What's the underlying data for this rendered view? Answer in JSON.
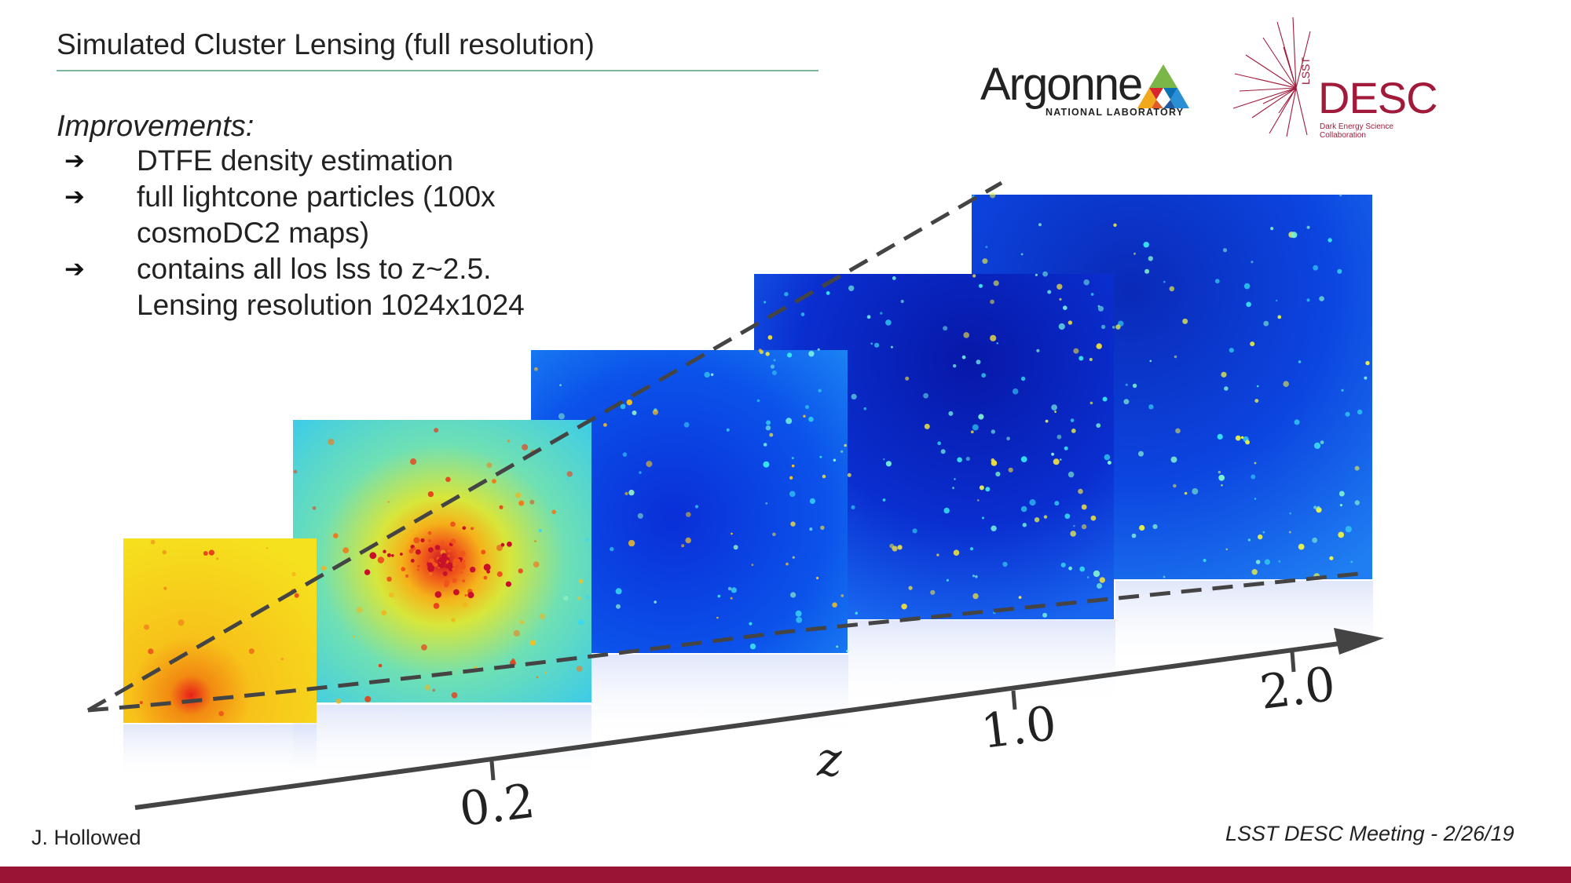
{
  "slide": {
    "title": "Simulated Cluster Lensing (full resolution)",
    "improvements_heading": "Improvements:",
    "bullets": [
      {
        "arrow": "➔",
        "lines": [
          "DTFE density estimation"
        ]
      },
      {
        "arrow": "➔",
        "lines": [
          "full lightcone particles (100x",
          "cosmoDC2 maps)"
        ]
      },
      {
        "arrow": "➔",
        "lines": [
          "contains all los lss to z~2.5.",
          "Lensing resolution  1024x1024"
        ]
      }
    ]
  },
  "logos": {
    "argonne": {
      "name": "Argonne",
      "subtitle": "NATIONAL LABORATORY"
    },
    "desc": {
      "name": "DESC",
      "prefix": "LSST",
      "subtitle": "Dark Energy Science Collaboration",
      "color": "#a11a3a"
    }
  },
  "figure": {
    "axis_label": "z",
    "ticks": [
      "0.2",
      "1.0",
      "2.0"
    ],
    "maps": [
      {
        "name": "map-z-lowest",
        "palette": "yellow-orange"
      },
      {
        "name": "map-z-0.2",
        "palette": "cyan-yellow-red"
      },
      {
        "name": "map-z-mid",
        "palette": "blue"
      },
      {
        "name": "map-z-1.0",
        "palette": "dark-blue"
      },
      {
        "name": "map-z-2.0",
        "palette": "blue"
      }
    ]
  },
  "footer": {
    "author": "J. Hollowed",
    "meeting": "LSST DESC Meeting - 2/26/19"
  },
  "colors": {
    "accent_bar": "#9a1535",
    "title_rule": "#7fb59a",
    "desc_red": "#a11a3a"
  }
}
